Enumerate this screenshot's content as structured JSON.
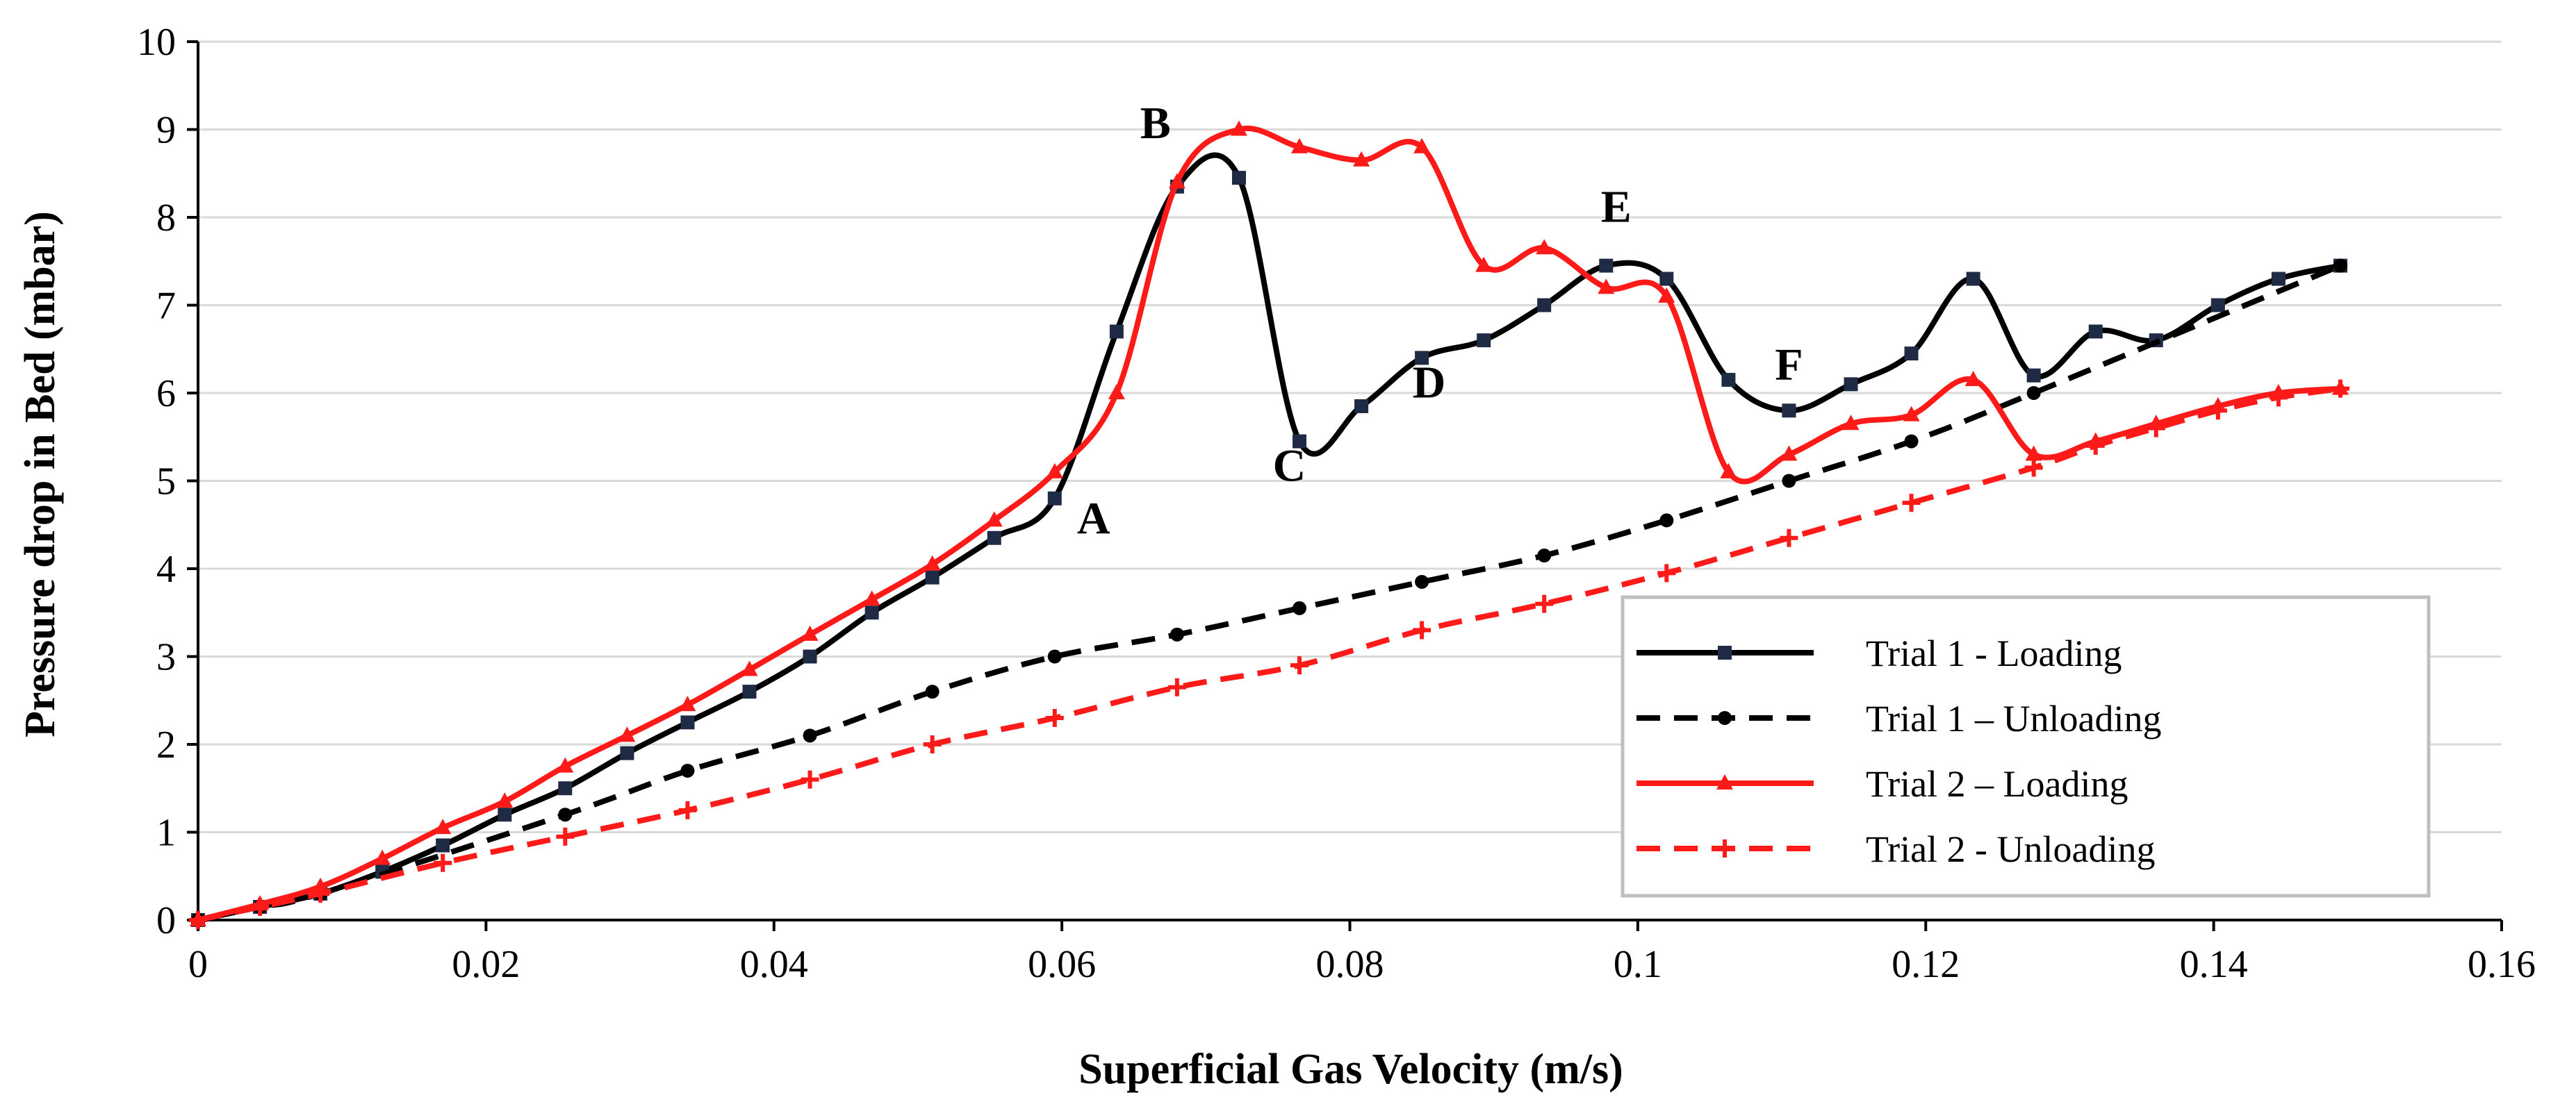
{
  "chart_data": {
    "type": "line",
    "title": "",
    "xlabel": "Superficial Gas Velocity (m/s)",
    "ylabel": "Pressure drop in Bed (mbar)",
    "xlim": [
      0,
      0.16
    ],
    "ylim": [
      0,
      10
    ],
    "x_ticks": [
      0,
      0.02,
      0.04,
      0.06,
      0.08,
      0.1,
      0.12,
      0.14,
      0.16
    ],
    "x_tick_labels": [
      "0",
      "0.02",
      "0.04",
      "0.06",
      "0.08",
      "0.1",
      "0.12",
      "0.14",
      "0.16"
    ],
    "y_ticks": [
      0,
      1,
      2,
      3,
      4,
      5,
      6,
      7,
      8,
      9,
      10
    ],
    "y_tick_labels": [
      "0",
      "1",
      "2",
      "3",
      "4",
      "5",
      "6",
      "7",
      "8",
      "9",
      "10"
    ],
    "grid": "horizontal",
    "legend_position": "bottom-right",
    "colors": {
      "black": "#000000",
      "navy_marker": "#1f2a44",
      "red": "#ff1a1a",
      "grid": "#d9d9d9",
      "axis": "#000000"
    },
    "series": [
      {
        "name": "Trial 1 - Loading",
        "color": "#000000",
        "marker_color": "#1f2a44",
        "dash": "solid",
        "marker": "square",
        "x": [
          0,
          0.0043,
          0.0085,
          0.0128,
          0.017,
          0.0213,
          0.0255,
          0.0298,
          0.034,
          0.0383,
          0.0425,
          0.0468,
          0.051,
          0.0553,
          0.0595,
          0.0638,
          0.068,
          0.0723,
          0.0765,
          0.0808,
          0.085,
          0.0893,
          0.0935,
          0.0978,
          0.102,
          0.1063,
          0.1105,
          0.1148,
          0.119,
          0.1233,
          0.1275,
          0.1318,
          0.136,
          0.1403,
          0.1445,
          0.1488
        ],
        "y": [
          0,
          0.15,
          0.3,
          0.55,
          0.85,
          1.2,
          1.5,
          1.9,
          2.25,
          2.6,
          3.0,
          3.5,
          3.9,
          4.35,
          4.8,
          6.7,
          8.35,
          8.45,
          5.45,
          5.85,
          6.4,
          6.6,
          7.0,
          7.45,
          7.3,
          6.15,
          5.8,
          6.1,
          6.45,
          7.3,
          6.2,
          6.7,
          6.6,
          7.0,
          7.3,
          7.45
        ]
      },
      {
        "name": "Trial 1 – Unloading",
        "color": "#000000",
        "marker_color": "#000000",
        "dash": "dashed",
        "marker": "circle",
        "x": [
          0,
          0.0043,
          0.0085,
          0.0255,
          0.034,
          0.0425,
          0.051,
          0.0595,
          0.068,
          0.0765,
          0.085,
          0.0935,
          0.102,
          0.1105,
          0.119,
          0.1275,
          0.1488
        ],
        "y": [
          0,
          0.15,
          0.3,
          1.2,
          1.7,
          2.1,
          2.6,
          3.0,
          3.25,
          3.55,
          3.85,
          4.15,
          4.55,
          5.0,
          5.45,
          6.0,
          7.45
        ]
      },
      {
        "name": "Trial 2 – Loading",
        "color": "#ff1a1a",
        "marker_color": "#ff1a1a",
        "dash": "solid",
        "marker": "triangle",
        "x": [
          0,
          0.0043,
          0.0085,
          0.0128,
          0.017,
          0.0213,
          0.0255,
          0.0298,
          0.034,
          0.0383,
          0.0425,
          0.0468,
          0.051,
          0.0553,
          0.0595,
          0.0638,
          0.068,
          0.0723,
          0.0765,
          0.0808,
          0.085,
          0.0893,
          0.0935,
          0.0978,
          0.102,
          0.1063,
          0.1105,
          0.1148,
          0.119,
          0.1233,
          0.1275,
          0.1318,
          0.136,
          0.1403,
          0.1445,
          0.1488
        ],
        "y": [
          0,
          0.18,
          0.38,
          0.7,
          1.05,
          1.35,
          1.75,
          2.1,
          2.45,
          2.85,
          3.25,
          3.65,
          4.05,
          4.55,
          5.1,
          6.0,
          8.4,
          9.0,
          8.8,
          8.65,
          8.8,
          7.45,
          7.65,
          7.2,
          7.1,
          5.1,
          5.3,
          5.65,
          5.75,
          6.15,
          5.3,
          5.45,
          5.65,
          5.85,
          6.0,
          6.05
        ]
      },
      {
        "name": "Trial 2 - Unloading",
        "color": "#ff1a1a",
        "marker_color": "#ff1a1a",
        "dash": "dashed",
        "marker": "plus",
        "x": [
          0,
          0.0043,
          0.0085,
          0.017,
          0.0255,
          0.034,
          0.0425,
          0.051,
          0.0595,
          0.068,
          0.0765,
          0.085,
          0.0935,
          0.102,
          0.1105,
          0.119,
          0.1275,
          0.1318,
          0.136,
          0.1403,
          0.1445,
          0.1488
        ],
        "y": [
          0,
          0.15,
          0.3,
          0.65,
          0.95,
          1.25,
          1.6,
          2.0,
          2.3,
          2.65,
          2.9,
          3.3,
          3.6,
          3.95,
          4.35,
          4.75,
          5.15,
          5.4,
          5.6,
          5.8,
          5.95,
          6.05
        ]
      }
    ],
    "annotations": [
      {
        "text": "A",
        "x": 0.0622,
        "y": 4.4
      },
      {
        "text": "B",
        "x": 0.0665,
        "y": 8.9
      },
      {
        "text": "C",
        "x": 0.0758,
        "y": 5.0
      },
      {
        "text": "D",
        "x": 0.0855,
        "y": 5.95
      },
      {
        "text": "E",
        "x": 0.0985,
        "y": 7.95
      },
      {
        "text": "F",
        "x": 0.1105,
        "y": 6.15
      }
    ]
  }
}
